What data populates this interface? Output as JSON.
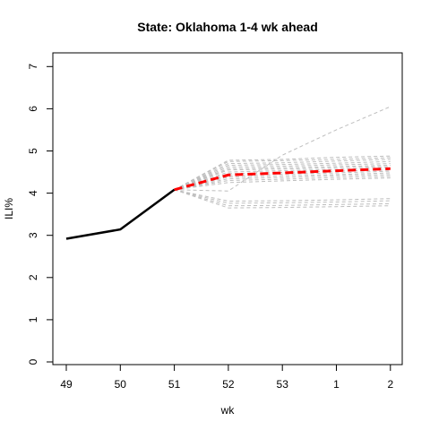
{
  "chart_data": {
    "type": "line",
    "title": "State: Oklahoma 1-4 wk ahead",
    "xlabel": "wk",
    "ylabel": "ILI%",
    "x_ticks": [
      "49",
      "50",
      "51",
      "52",
      "53",
      "1",
      "2"
    ],
    "y_ticks": [
      0,
      1,
      2,
      3,
      4,
      5,
      6,
      7
    ],
    "ylim": [
      0,
      7
    ],
    "observed": {
      "x": [
        "49",
        "50",
        "51"
      ],
      "values": [
        2.92,
        3.14,
        4.08
      ],
      "color": "#000000"
    },
    "forecast_mean": {
      "x": [
        "51",
        "52",
        "53",
        "1",
        "2"
      ],
      "values": [
        4.08,
        4.43,
        4.48,
        4.53,
        4.58
      ],
      "color": "#ff0000"
    },
    "forecast_samples": {
      "x": [
        "51",
        "52",
        "53",
        "1",
        "2"
      ],
      "color": "#bebebe",
      "trajectories": [
        [
          4.08,
          4.05,
          4.9,
          5.5,
          6.05
        ],
        [
          4.08,
          4.78,
          4.8,
          4.85,
          4.88
        ],
        [
          4.08,
          4.75,
          4.77,
          4.8,
          4.84
        ],
        [
          4.08,
          4.7,
          4.72,
          4.76,
          4.8
        ],
        [
          4.08,
          4.66,
          4.68,
          4.71,
          4.75
        ],
        [
          4.08,
          4.62,
          4.64,
          4.67,
          4.7
        ],
        [
          4.08,
          4.58,
          4.6,
          4.63,
          4.66
        ],
        [
          4.08,
          4.55,
          4.57,
          4.6,
          4.63
        ],
        [
          4.08,
          4.5,
          4.53,
          4.56,
          4.6
        ],
        [
          4.08,
          4.46,
          4.49,
          4.52,
          4.55
        ],
        [
          4.08,
          4.42,
          4.45,
          4.48,
          4.52
        ],
        [
          4.08,
          4.38,
          4.41,
          4.44,
          4.48
        ],
        [
          4.08,
          4.34,
          4.37,
          4.41,
          4.44
        ],
        [
          4.08,
          4.3,
          4.33,
          4.37,
          4.4
        ],
        [
          4.08,
          4.25,
          4.29,
          4.33,
          4.36
        ],
        [
          4.08,
          3.81,
          3.82,
          3.84,
          3.87
        ],
        [
          4.08,
          3.76,
          3.77,
          3.79,
          3.82
        ],
        [
          4.08,
          3.7,
          3.71,
          3.73,
          3.75
        ],
        [
          4.08,
          3.65,
          3.66,
          3.68,
          3.7
        ]
      ]
    }
  }
}
